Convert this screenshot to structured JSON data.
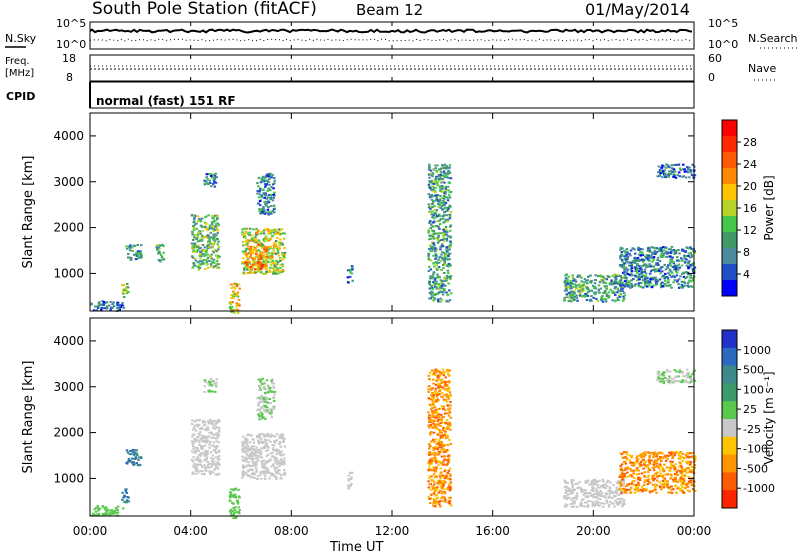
{
  "header": {
    "title": "South Pole Station (fitACF)",
    "beam": "Beam 12",
    "date": "01/May/2014"
  },
  "top_strip": {
    "left_label": "N.Sky",
    "right_label": "N.Search",
    "left_ticks": [
      "10^5",
      "10^0"
    ],
    "right_ticks": [
      "10^5",
      "10^0"
    ]
  },
  "freq_strip": {
    "left_label_line1": "Freq.",
    "left_label_line2": "[MHz]",
    "right_label": "Nave",
    "left_ticks": [
      "18",
      "8"
    ],
    "right_ticks": [
      "60",
      "0"
    ]
  },
  "cpid": {
    "label": "CPID",
    "text": "normal (fast) 151 RF"
  },
  "panels": {
    "y_label": "Slant Range [km]",
    "y_ticks": [
      "4000",
      "3000",
      "2000",
      "1000"
    ],
    "x_ticks": [
      "00:00",
      "04:00",
      "08:00",
      "12:00",
      "16:00",
      "20:00",
      "00:00"
    ],
    "x_label": "Time UT"
  },
  "power_scale": {
    "label": "Power [dB]",
    "ticks": [
      "28",
      "24",
      "20",
      "16",
      "12",
      "8",
      "4"
    ],
    "colors": [
      "#0000ff",
      "#2050c8",
      "#4c8ca0",
      "#3f9a68",
      "#43c84b",
      "#b8d22a",
      "#ffc400",
      "#ff8800",
      "#ff5a00",
      "#ff2a00",
      "#ff0000"
    ]
  },
  "velocity_scale": {
    "label": "Velocity [m s⁻¹]",
    "ticks": [
      "1000",
      "500",
      "100",
      "25",
      "-25",
      "-100",
      "-500",
      "-1000"
    ],
    "colors": [
      "#2232c8",
      "#2a6ac0",
      "#3e8a8a",
      "#3c9a6c",
      "#5ac84e",
      "#c8c8c8",
      "#ffc400",
      "#ff9400",
      "#ff5c00",
      "#ff2400"
    ]
  },
  "chart_data": [
    {
      "type": "heatmap",
      "title": "South Pole Station (fitACF) Beam 12 01/May/2014",
      "xlabel": "Time UT",
      "ylabel": "Slant Range [km]",
      "colorbar_label": "Power [dB]",
      "xlim": [
        0,
        24
      ],
      "ylim": [
        180,
        4500
      ],
      "clim": [
        0,
        32
      ],
      "regions": [
        {
          "t0": 0.0,
          "t1": 1.3,
          "r0": 200,
          "r1": 420,
          "v": 6
        },
        {
          "t0": 1.2,
          "t1": 1.5,
          "r0": 500,
          "r1": 800,
          "v": 14
        },
        {
          "t0": 1.4,
          "t1": 2.0,
          "r0": 1300,
          "r1": 1650,
          "v": 8
        },
        {
          "t0": 2.6,
          "t1": 2.9,
          "r0": 1250,
          "r1": 1650,
          "v": 12
        },
        {
          "t0": 4.0,
          "t1": 5.1,
          "r0": 1100,
          "r1": 2300,
          "v": 12
        },
        {
          "t0": 4.5,
          "t1": 5.0,
          "r0": 2900,
          "r1": 3200,
          "v": 8
        },
        {
          "t0": 5.5,
          "t1": 5.9,
          "r0": 150,
          "r1": 800,
          "v": 18
        },
        {
          "t0": 6.0,
          "t1": 7.7,
          "r0": 1000,
          "r1": 2000,
          "v": 16
        },
        {
          "t0": 6.1,
          "t1": 7.0,
          "r0": 1100,
          "r1": 1650,
          "v": 22
        },
        {
          "t0": 6.6,
          "t1": 7.3,
          "r0": 2300,
          "r1": 3200,
          "v": 8
        },
        {
          "t0": 10.2,
          "t1": 10.4,
          "r0": 800,
          "r1": 1200,
          "v": 8
        },
        {
          "t0": 13.4,
          "t1": 14.3,
          "r0": 400,
          "r1": 3400,
          "v": 10
        },
        {
          "t0": 18.8,
          "t1": 21.2,
          "r0": 400,
          "r1": 1000,
          "v": 10
        },
        {
          "t0": 21.0,
          "t1": 24.0,
          "r0": 700,
          "r1": 1600,
          "v": 8
        },
        {
          "t0": 22.5,
          "t1": 24.0,
          "r0": 3100,
          "r1": 3400,
          "v": 6
        }
      ]
    },
    {
      "type": "heatmap",
      "title": "South Pole Station (fitACF) Beam 12 01/May/2014",
      "xlabel": "Time UT",
      "ylabel": "Slant Range [km]",
      "colorbar_label": "Velocity [m s⁻¹]",
      "xlim": [
        0,
        24
      ],
      "ylim": [
        180,
        4500
      ],
      "clim": [
        -1000,
        1000
      ],
      "regions": [
        {
          "t0": 0.0,
          "t1": 1.3,
          "r0": 200,
          "r1": 420,
          "v": 100
        },
        {
          "t0": 1.2,
          "t1": 1.5,
          "r0": 500,
          "r1": 800,
          "v": 500
        },
        {
          "t0": 1.4,
          "t1": 2.0,
          "r0": 1300,
          "r1": 1650,
          "v": 500
        },
        {
          "t0": 4.0,
          "t1": 5.1,
          "r0": 1100,
          "r1": 2300,
          "v": -100
        },
        {
          "t0": 4.5,
          "t1": 5.0,
          "r0": 2900,
          "r1": 3200,
          "v": 0
        },
        {
          "t0": 5.5,
          "t1": 5.9,
          "r0": 150,
          "r1": 800,
          "v": 100
        },
        {
          "t0": 6.0,
          "t1": 7.7,
          "r0": 1000,
          "r1": 2000,
          "v": -100
        },
        {
          "t0": 6.6,
          "t1": 7.3,
          "r0": 2300,
          "r1": 3200,
          "v": 0
        },
        {
          "t0": 10.2,
          "t1": 10.4,
          "r0": 800,
          "r1": 1200,
          "v": -100
        },
        {
          "t0": 13.4,
          "t1": 14.3,
          "r0": 400,
          "r1": 3400,
          "v": -500
        },
        {
          "t0": 18.8,
          "t1": 21.2,
          "r0": 400,
          "r1": 1000,
          "v": -100
        },
        {
          "t0": 21.0,
          "t1": 24.0,
          "r0": 700,
          "r1": 1600,
          "v": -500
        },
        {
          "t0": 22.5,
          "t1": 24.0,
          "r0": 3100,
          "r1": 3400,
          "v": 0
        }
      ]
    }
  ]
}
